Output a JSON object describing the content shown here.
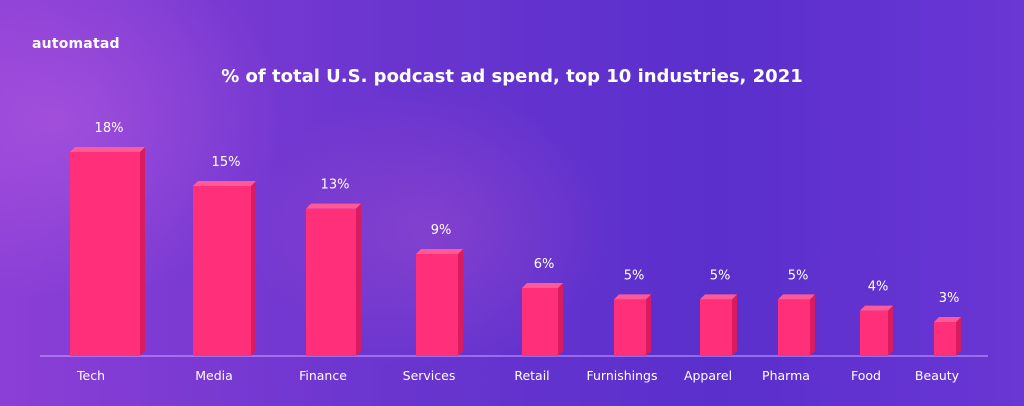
{
  "brand": "automatad",
  "colors": {
    "bar_front": "#ff2f79",
    "bar_side": "#d91b5f",
    "bar_top": "#ff5a96",
    "baseline": "#c9a6ff"
  },
  "chart_data": {
    "type": "bar",
    "title": "% of total U.S. podcast ad spend, top 10 industries, 2021",
    "categories": [
      "Tech",
      "Media",
      "Finance",
      "Services",
      "Retail",
      "Furnishings",
      "Apparel",
      "Pharma",
      "Food",
      "Beauty"
    ],
    "values": [
      18,
      15,
      13,
      9,
      6,
      5,
      5,
      5,
      4,
      3
    ],
    "value_labels": [
      "18%",
      "15%",
      "13%",
      "9%",
      "6%",
      "5%",
      "5%",
      "5%",
      "4%",
      "3%"
    ],
    "xlabel": "",
    "ylabel": "",
    "ylim": [
      0,
      18
    ],
    "grid": false,
    "legend": "none"
  }
}
